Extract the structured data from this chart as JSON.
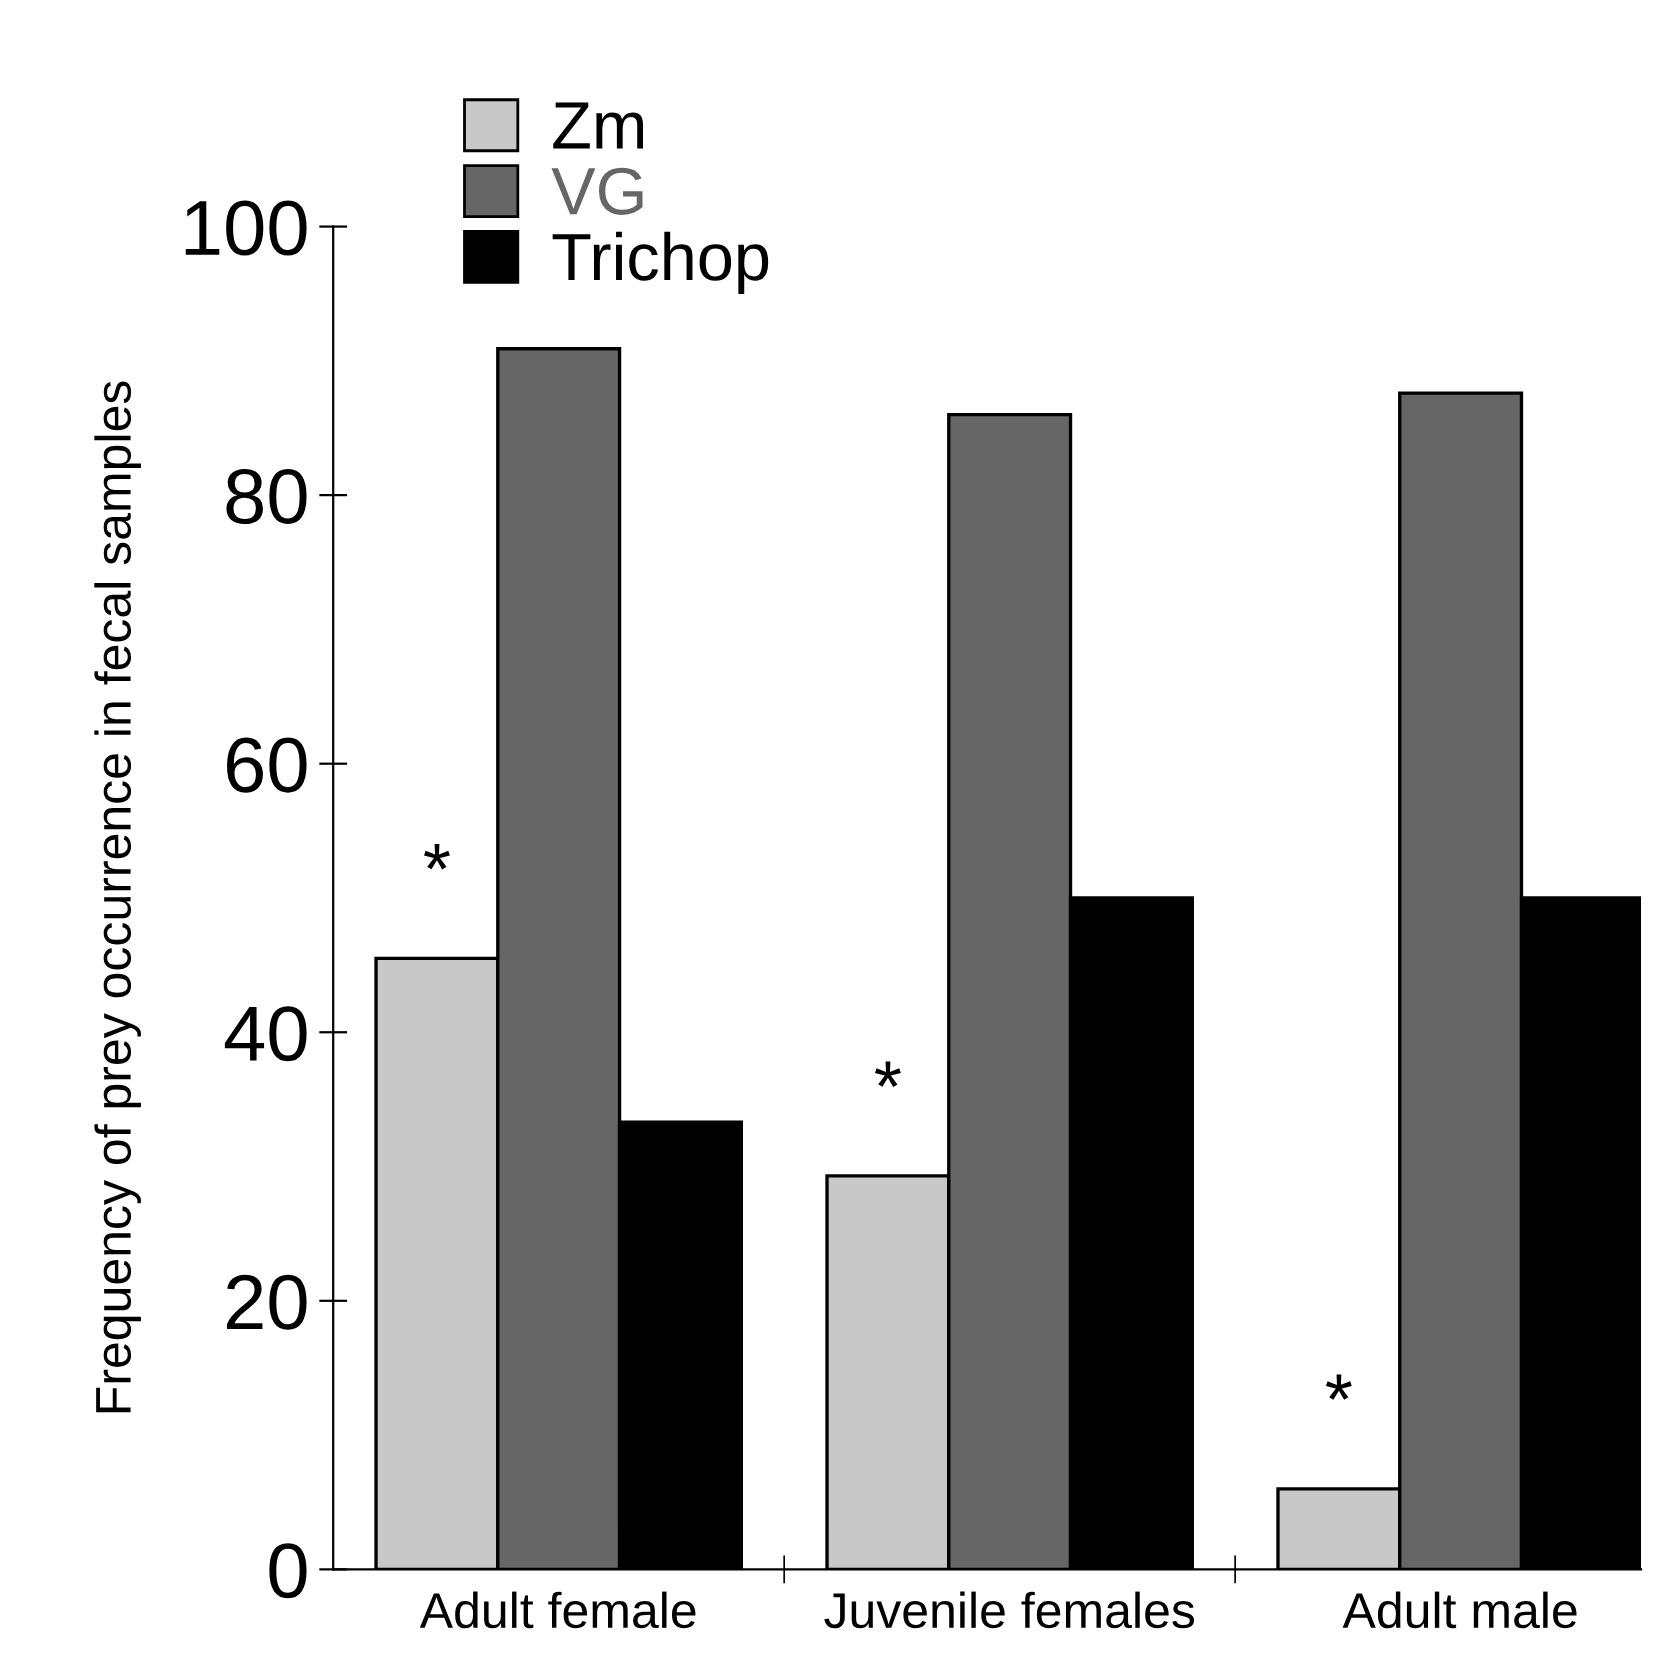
{
  "chart_data": {
    "type": "bar",
    "ylabel": "Frequency of prey occurrence in fecal samples",
    "categories": [
      "Adult female",
      "Juvenile females",
      "Adult male"
    ],
    "series": [
      {
        "name": "Zm",
        "color": "#c8c8c8",
        "values": [
          45.5,
          29.3,
          6.0
        ]
      },
      {
        "name": "VG",
        "color": "#666666",
        "values": [
          90.9,
          86.0,
          87.6
        ]
      },
      {
        "name": "Trichop",
        "color": "#000000",
        "values": [
          33.3,
          50.0,
          50.0
        ]
      }
    ],
    "ylim": [
      0,
      100
    ],
    "yticks": [
      0,
      20,
      40,
      60,
      80,
      100
    ],
    "grid": false,
    "legend": "top left",
    "annotations": [
      "*",
      "*",
      "*"
    ]
  }
}
